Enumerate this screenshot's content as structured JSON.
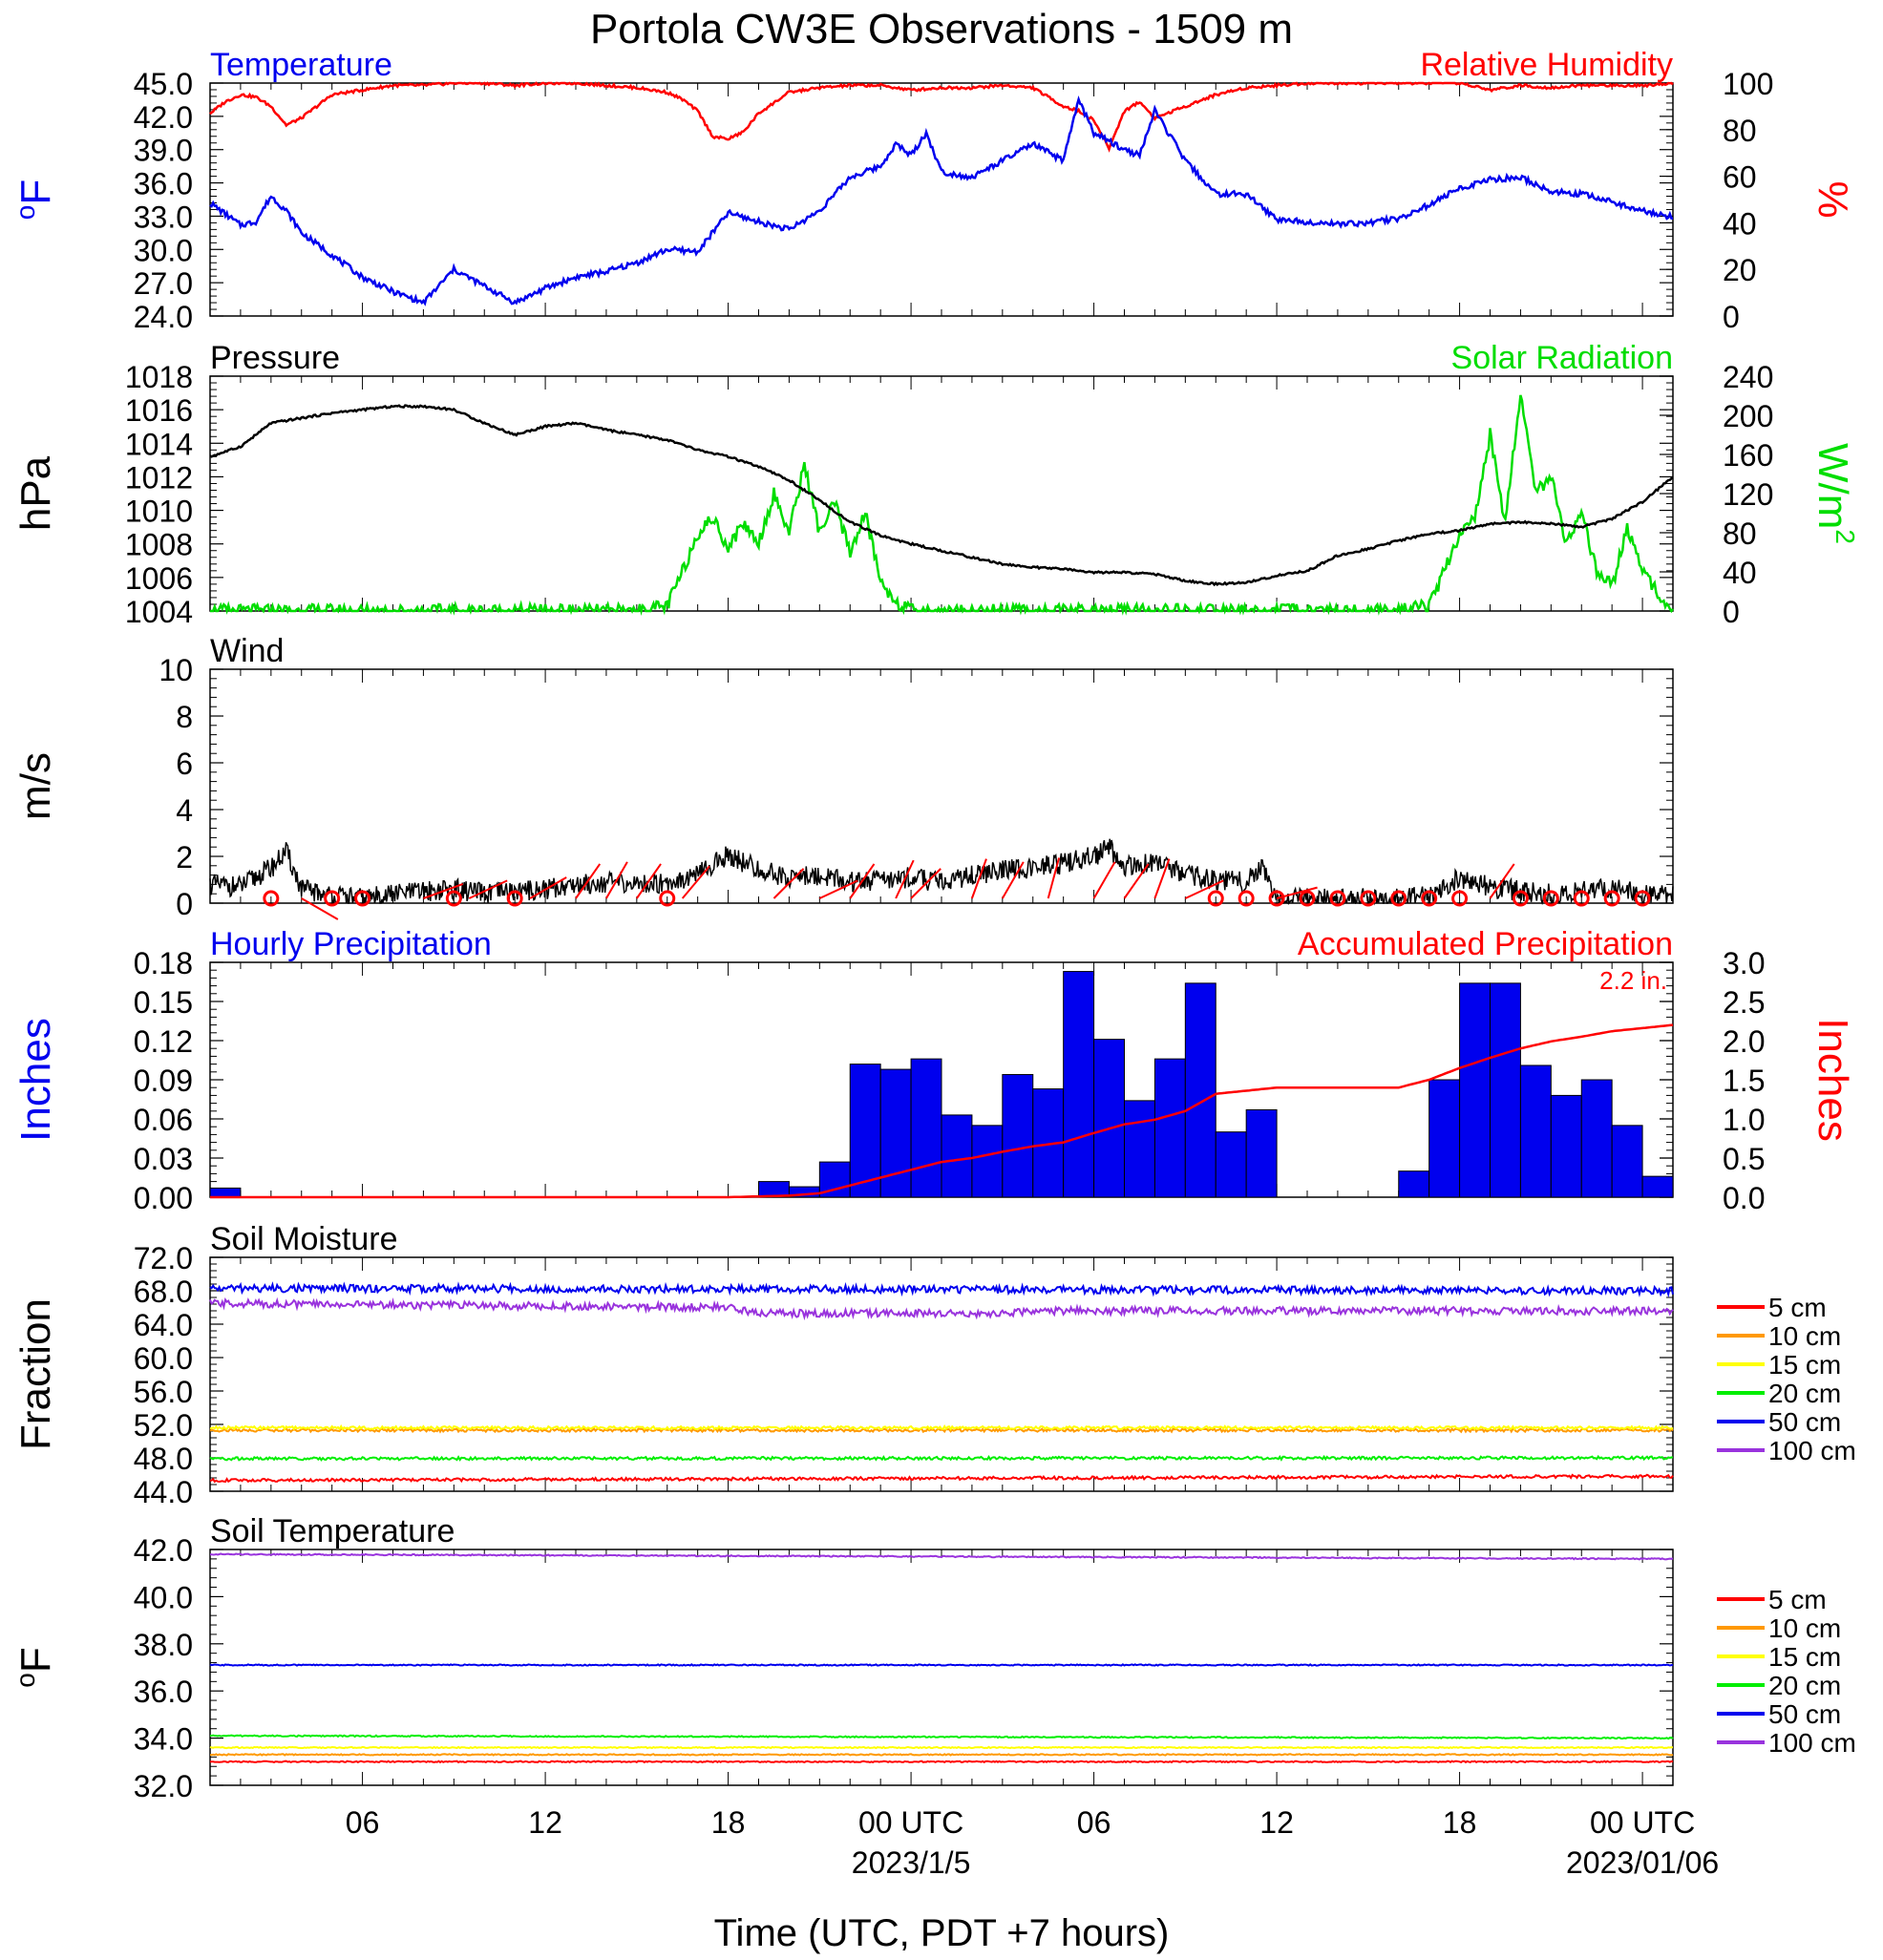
{
  "title": "Portola CW3E Observations - 1509 m",
  "x_axis": {
    "label": "Time (UTC, PDT +7 hours)",
    "ticks": [
      {
        "h": 6,
        "label": "06"
      },
      {
        "h": 12,
        "label": "12"
      },
      {
        "h": 18,
        "label": "18"
      },
      {
        "h": 24,
        "label": "00 UTC",
        "date": "2023/1/5"
      },
      {
        "h": 30,
        "label": "06"
      },
      {
        "h": 36,
        "label": "12"
      },
      {
        "h": 42,
        "label": "18"
      },
      {
        "h": 48,
        "label": "00 UTC",
        "date": "2023/01/06"
      }
    ],
    "range_hours": [
      1,
      49
    ]
  },
  "colors": {
    "temperature": "#0000ee",
    "humidity": "#ff0000",
    "pressure": "#000000",
    "solar": "#00dd00",
    "wind": "#000000",
    "barb": "#ff0000",
    "hourly_precip": "#0000ee",
    "accum_precip": "#ff0000",
    "depth_5": "#ff0000",
    "depth_10": "#ff9900",
    "depth_15": "#ffff00",
    "depth_20": "#00ee00",
    "depth_50": "#0000ee",
    "depth_100": "#9933dd"
  },
  "chart_data": [
    {
      "type": "line",
      "panel": "temperature-humidity",
      "left_title": "Temperature",
      "right_title": "Relative Humidity",
      "left_unit": "oF",
      "right_unit": "%",
      "left_ticks": [
        "45.0",
        "42.0",
        "39.0",
        "36.0",
        "33.0",
        "30.0",
        "27.0",
        "24.0"
      ],
      "right_ticks": [
        "100",
        "80",
        "60",
        "40",
        "20",
        "0"
      ],
      "ylim_left": [
        24,
        45
      ],
      "ylim_right": [
        0,
        100
      ],
      "series": [
        {
          "name": "Temperature",
          "axis": "left",
          "x": [
            1,
            2,
            2.5,
            3,
            3.5,
            4,
            5,
            6,
            7,
            8,
            9,
            10,
            11,
            12,
            13,
            14,
            15,
            16,
            17,
            18,
            19,
            20,
            21,
            22,
            23,
            23.5,
            24,
            24.5,
            25,
            26,
            27,
            28,
            29,
            29.5,
            30,
            31,
            31.5,
            32,
            33,
            34,
            35,
            36,
            37,
            38,
            39,
            40,
            41,
            42,
            43,
            44,
            45,
            46,
            47,
            48,
            49
          ],
          "y": [
            34.2,
            32.2,
            32.5,
            34.8,
            33.5,
            31.5,
            29.5,
            27.5,
            26.2,
            25.2,
            28.2,
            26.7,
            25.2,
            26.5,
            27.5,
            28,
            28.8,
            30,
            29.8,
            33.3,
            32.5,
            31.8,
            33.5,
            36.5,
            37.5,
            39.5,
            38.5,
            40.5,
            37,
            36.5,
            38,
            39.5,
            38,
            43.5,
            40.5,
            39,
            38.5,
            42.5,
            38,
            35,
            35,
            32.7,
            32.5,
            32.3,
            32.4,
            32.8,
            34,
            35.5,
            36.3,
            36.5,
            35.2,
            35,
            34.3,
            33.5,
            32.9
          ]
        },
        {
          "name": "Relative Humidity",
          "axis": "right",
          "x": [
            1,
            1.5,
            2,
            2.5,
            3,
            3.5,
            4,
            4.5,
            5,
            6,
            7,
            8,
            9,
            10,
            11,
            12,
            13,
            14,
            15,
            16,
            16.5,
            17,
            17.5,
            18,
            18.5,
            19,
            20,
            21,
            22,
            23,
            24,
            25,
            26,
            27,
            28,
            29,
            29.5,
            30,
            30.5,
            31,
            31.5,
            32,
            33,
            34,
            35,
            36,
            37,
            38,
            39,
            40,
            41,
            42,
            43,
            44,
            45,
            46,
            47,
            48,
            49
          ],
          "y": [
            87,
            92,
            95,
            94,
            90,
            82,
            85,
            90,
            95,
            97,
            99,
            99,
            100,
            100,
            99,
            100,
            100,
            99,
            98,
            96,
            93,
            88,
            77,
            76,
            79,
            87,
            96,
            98,
            99,
            99,
            97,
            98,
            98,
            99,
            98,
            90,
            88,
            84,
            72,
            88,
            92,
            85,
            90,
            95,
            98,
            99,
            100,
            100,
            100,
            100,
            100,
            100,
            97,
            99,
            98,
            99,
            99,
            99,
            100
          ]
        }
      ]
    },
    {
      "type": "line",
      "panel": "pressure-solar",
      "left_title": "Pressure",
      "right_title": "Solar Radiation",
      "left_unit": "hPa",
      "right_unit": "W/m",
      "right_unit_sup": "2",
      "left_ticks": [
        "1018",
        "1016",
        "1014",
        "1012",
        "1010",
        "1008",
        "1006",
        "1004"
      ],
      "right_ticks": [
        "240",
        "200",
        "160",
        "120",
        "80",
        "40",
        "0"
      ],
      "ylim_left": [
        1004,
        1018
      ],
      "ylim_right": [
        0,
        240
      ],
      "series": [
        {
          "name": "Pressure",
          "axis": "left",
          "x": [
            1,
            2,
            3,
            4,
            5,
            6,
            7,
            8,
            9,
            10,
            11,
            12,
            13,
            14,
            15,
            16,
            17,
            18,
            19,
            20,
            21,
            22,
            23,
            24,
            25,
            26,
            27,
            28,
            29,
            30,
            31,
            32,
            33,
            34,
            35,
            36,
            37,
            38,
            39,
            40,
            41,
            42,
            43,
            44,
            45,
            46,
            47,
            48,
            49
          ],
          "y": [
            1013.2,
            1013.8,
            1015.2,
            1015.5,
            1015.8,
            1016,
            1016.2,
            1016.2,
            1016,
            1015.2,
            1014.5,
            1015,
            1015.2,
            1014.8,
            1014.5,
            1014.2,
            1013.6,
            1013.2,
            1012.6,
            1011.8,
            1010.6,
            1009.3,
            1008.5,
            1008,
            1007.6,
            1007.2,
            1006.8,
            1006.6,
            1006.5,
            1006.3,
            1006.3,
            1006.2,
            1005.8,
            1005.6,
            1005.7,
            1006.1,
            1006.4,
            1007.3,
            1007.7,
            1008.2,
            1008.6,
            1008.8,
            1009.2,
            1009.3,
            1009.2,
            1009,
            1009.5,
            1010.5,
            1012
          ]
        },
        {
          "name": "Solar Radiation",
          "axis": "right",
          "x": [
            1,
            15,
            16,
            16.5,
            17,
            17.5,
            18,
            18.5,
            19,
            19.5,
            20,
            20.5,
            21,
            21.5,
            22,
            22.5,
            23,
            23.5,
            24,
            25,
            40,
            41,
            41.5,
            42,
            42.5,
            43,
            43.5,
            44,
            44.5,
            45,
            45.5,
            46,
            46.5,
            47,
            47.5,
            48,
            48.5,
            49
          ],
          "y": [
            0,
            0,
            5,
            40,
            80,
            95,
            65,
            90,
            70,
            120,
            80,
            150,
            80,
            110,
            60,
            100,
            30,
            10,
            0,
            0,
            0,
            5,
            40,
            80,
            95,
            180,
            90,
            225,
            120,
            140,
            65,
            100,
            40,
            25,
            85,
            40,
            20,
            0
          ]
        }
      ]
    },
    {
      "type": "line",
      "panel": "wind",
      "left_title": "Wind",
      "left_unit": "m/s",
      "left_ticks": [
        "10",
        "8",
        "6",
        "4",
        "2",
        "0"
      ],
      "ylim": [
        0,
        10
      ],
      "series": [
        {
          "name": "Wind",
          "x": [
            1,
            2,
            3,
            3.5,
            4,
            5,
            6,
            7,
            8,
            9,
            10,
            11,
            12,
            13,
            14,
            15,
            16,
            17,
            18,
            19,
            20,
            21,
            22,
            23,
            24,
            25,
            26,
            27,
            28,
            29,
            30,
            30.5,
            31,
            32,
            33,
            34,
            35,
            35.5,
            36,
            37,
            38,
            39,
            40,
            41,
            42,
            43,
            44,
            45,
            46,
            47,
            48,
            49
          ],
          "y": [
            0.8,
            0.7,
            1.5,
            2.2,
            0.6,
            0.3,
            0.2,
            0.4,
            0.5,
            0.6,
            0.4,
            0.5,
            0.6,
            0.8,
            0.9,
            0.8,
            0.9,
            1.2,
            2.1,
            1.4,
            1.1,
            1.2,
            0.9,
            1.0,
            1.1,
            0.9,
            1.2,
            1.4,
            1.5,
            1.7,
            2.0,
            2.4,
            1.6,
            1.7,
            1.2,
            1.0,
            0.9,
            1.6,
            0.2,
            0.2,
            0.2,
            0.2,
            0.2,
            0.3,
            1.1,
            0.7,
            0.5,
            0.4,
            0.5,
            0.6,
            0.4,
            0.3
          ]
        }
      ],
      "calm_hours": [
        3,
        5,
        6,
        9,
        11,
        16,
        34,
        35,
        36,
        37,
        38,
        39,
        40,
        41,
        42,
        44,
        45,
        46,
        47,
        48
      ],
      "barb_hours": [
        4,
        8,
        9.5,
        11.5,
        13,
        14,
        15,
        16.5,
        19.5,
        21,
        22,
        23.5,
        24,
        26,
        27,
        28.5,
        30,
        31,
        32,
        33,
        36,
        43
      ],
      "barb_angles": [
        30,
        -20,
        -25,
        -30,
        -55,
        -60,
        -55,
        -50,
        -45,
        -25,
        -55,
        -65,
        -45,
        -70,
        -60,
        -75,
        -60,
        -55,
        -70,
        -25,
        -15,
        -55
      ]
    },
    {
      "type": "bar",
      "panel": "precipitation",
      "left_title": "Hourly Precipitation",
      "right_title": "Accumulated Precipitation",
      "total_label": "2.2 in.",
      "left_unit": "Inches",
      "right_unit": "Inches",
      "left_ticks": [
        "0.18",
        "0.15",
        "0.12",
        "0.09",
        "0.06",
        "0.03",
        "0.00"
      ],
      "right_ticks": [
        "3.0",
        "2.5",
        "2.0",
        "1.5",
        "1.0",
        "0.5",
        "0.0"
      ],
      "ylim_left": [
        0,
        0.18
      ],
      "ylim_right": [
        0,
        3
      ],
      "series": [
        {
          "name": "Hourly Precipitation",
          "axis": "left",
          "hours": [
            1,
            19,
            20,
            21,
            22,
            23,
            24,
            25,
            26,
            27,
            28,
            29,
            30,
            31,
            32,
            33,
            34,
            35,
            36,
            37,
            38,
            39,
            40,
            41,
            42,
            43,
            44,
            45,
            46,
            47,
            48
          ],
          "values": [
            0.007,
            0.012,
            0.008,
            0.027,
            0.102,
            0.098,
            0.106,
            0.063,
            0.055,
            0.094,
            0.083,
            0.173,
            0.121,
            0.074,
            0.106,
            0.164,
            0.05,
            0.067,
            0,
            0,
            0,
            0,
            0.02,
            0.09,
            0.164,
            0.164,
            0.101,
            0.078,
            0.09,
            0.055,
            0.016
          ]
        },
        {
          "name": "Accumulated Precipitation",
          "axis": "right",
          "x": [
            1,
            18,
            19,
            20,
            21,
            22,
            23,
            24,
            25,
            26,
            27,
            28,
            29,
            30,
            31,
            32,
            33,
            34,
            35,
            36,
            40,
            41,
            42,
            43,
            44,
            45,
            46,
            47,
            48,
            49
          ],
          "y": [
            0,
            0,
            0.01,
            0.02,
            0.05,
            0.15,
            0.25,
            0.35,
            0.45,
            0.5,
            0.58,
            0.65,
            0.7,
            0.82,
            0.93,
            0.99,
            1.1,
            1.32,
            1.36,
            1.4,
            1.4,
            1.5,
            1.65,
            1.78,
            1.9,
            1.99,
            2.05,
            2.12,
            2.16,
            2.2
          ]
        }
      ]
    },
    {
      "type": "line",
      "panel": "soil-moisture",
      "left_title": "Soil Moisture",
      "left_unit": "Fraction",
      "left_ticks": [
        "72.0",
        "68.0",
        "64.0",
        "60.0",
        "56.0",
        "52.0",
        "48.0",
        "44.0"
      ],
      "ylim": [
        44,
        72
      ],
      "legend": [
        "5 cm",
        "10 cm",
        "15 cm",
        "20 cm",
        "50 cm",
        "100 cm"
      ],
      "series": [
        {
          "name": "5 cm",
          "x": [
            1,
            49
          ],
          "y": [
            45.3,
            45.8
          ]
        },
        {
          "name": "10 cm",
          "x": [
            1,
            49
          ],
          "y": [
            51.3,
            51.3
          ]
        },
        {
          "name": "15 cm",
          "x": [
            1,
            49
          ],
          "y": [
            51.6,
            51.6
          ]
        },
        {
          "name": "20 cm",
          "x": [
            1,
            49
          ],
          "y": [
            47.9,
            48.0
          ]
        },
        {
          "name": "50 cm",
          "x": [
            1,
            49
          ],
          "y": [
            68.3,
            68.0
          ]
        },
        {
          "name": "100 cm",
          "x": [
            1,
            18,
            19,
            27,
            28,
            49
          ],
          "y": [
            66.5,
            66.0,
            65.3,
            65.3,
            65.6,
            65.6
          ]
        }
      ]
    },
    {
      "type": "line",
      "panel": "soil-temperature",
      "left_title": "Soil Temperature",
      "left_unit": "oF",
      "left_ticks": [
        "42.0",
        "40.0",
        "38.0",
        "36.0",
        "34.0",
        "32.0"
      ],
      "ylim": [
        32,
        42
      ],
      "legend": [
        "5 cm",
        "10 cm",
        "15 cm",
        "20 cm",
        "50 cm",
        "100 cm"
      ],
      "series": [
        {
          "name": "5 cm",
          "x": [
            1,
            49
          ],
          "y": [
            33.0,
            33.0
          ]
        },
        {
          "name": "10 cm",
          "x": [
            1,
            49
          ],
          "y": [
            33.3,
            33.3
          ]
        },
        {
          "name": "15 cm",
          "x": [
            1,
            49
          ],
          "y": [
            33.6,
            33.6
          ]
        },
        {
          "name": "20 cm",
          "x": [
            1,
            49
          ],
          "y": [
            34.1,
            34.0
          ]
        },
        {
          "name": "50 cm",
          "x": [
            1,
            49
          ],
          "y": [
            37.1,
            37.1
          ]
        },
        {
          "name": "100 cm",
          "x": [
            1,
            49
          ],
          "y": [
            41.8,
            41.6
          ]
        }
      ]
    }
  ]
}
